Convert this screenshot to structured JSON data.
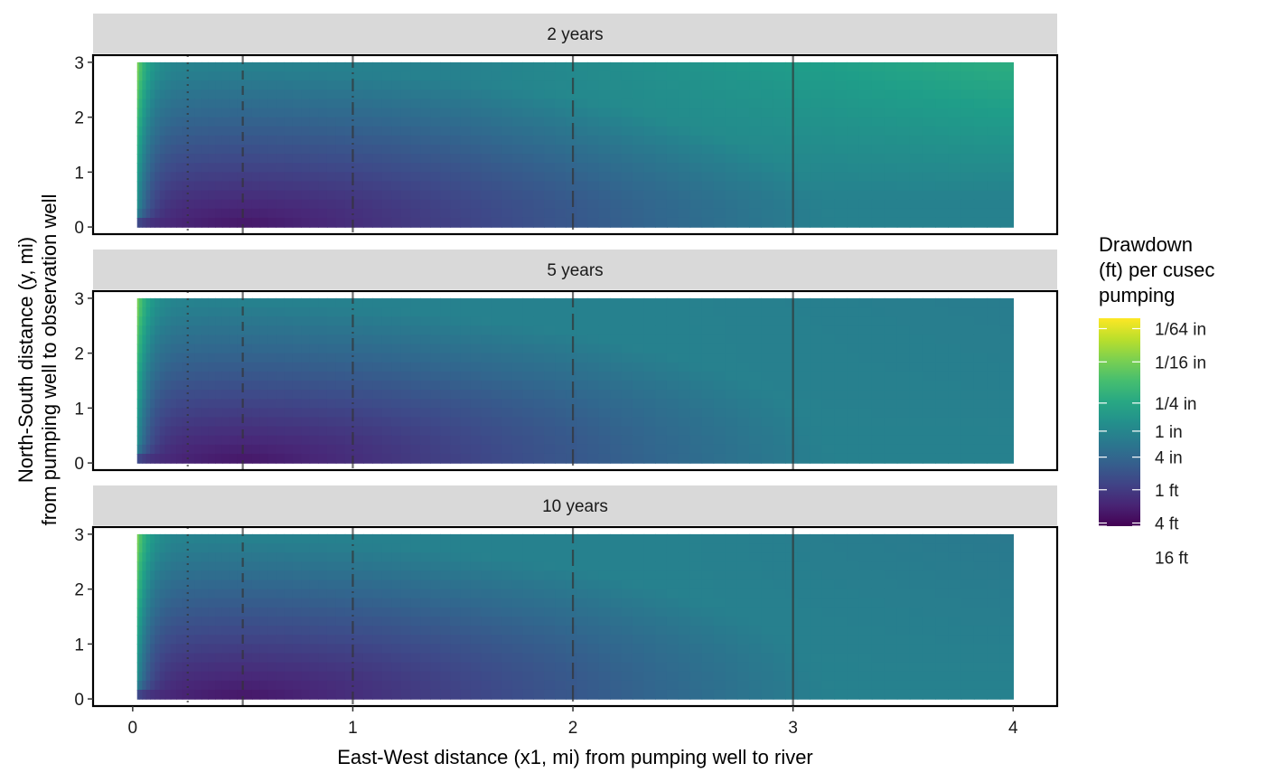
{
  "chart_data": {
    "type": "heatmap",
    "facet_by": "time",
    "panels": [
      {
        "label": "2 years",
        "years": 2
      },
      {
        "label": "5 years",
        "years": 5
      },
      {
        "label": "10 years",
        "years": 10
      }
    ],
    "xlabel": "East-West distance (x1, mi) from pumping well to river",
    "ylabel_lines": [
      "North-South distance (y, mi)",
      "from pumping well to observation well"
    ],
    "x_data_range": [
      0.02,
      4
    ],
    "y_data_range": [
      0,
      3
    ],
    "xlim": [
      -0.18,
      4.2
    ],
    "ylim": [
      -0.13,
      3.13
    ],
    "x_ticks": [
      0,
      1,
      2,
      3,
      4
    ],
    "x_tick_labels": [
      "0",
      "1",
      "2",
      "3",
      "4"
    ],
    "y_ticks": [
      0,
      1,
      2,
      3
    ],
    "y_tick_labels": [
      "0",
      "1",
      "2",
      "3"
    ],
    "reference_lines": [
      {
        "x": 0.25,
        "style": "dotted"
      },
      {
        "x": 0.5,
        "style": "dashed"
      },
      {
        "x": 1,
        "style": "dashdot"
      },
      {
        "x": 2,
        "style": "longdash"
      },
      {
        "x": 3,
        "style": "solid"
      }
    ],
    "colormap": "viridis",
    "colorbar_direction": "high drawdown = dark purple, low drawdown = yellow",
    "legend": {
      "title_lines": [
        "Drawdown",
        "(ft) per cusec",
        "pumping"
      ],
      "placement": "right",
      "entries": [
        {
          "label": "1/64 in",
          "value_ft": 0.0013,
          "t": 0.95
        },
        {
          "label": "1/16 in",
          "value_ft": 0.0052,
          "t": 0.79
        },
        {
          "label": "1/4 in",
          "value_ft": 0.0208,
          "t": 0.592
        },
        {
          "label": "1 in",
          "value_ft": 0.0833,
          "t": 0.457
        },
        {
          "label": "4 in",
          "value_ft": 0.333,
          "t": 0.332
        },
        {
          "label": "1 ft",
          "value_ft": 1,
          "t": 0.175
        },
        {
          "label": "4 ft",
          "value_ft": 4,
          "t": 0.015
        },
        {
          "label": "16 ft",
          "value_ft": 16,
          "t": -0.15
        }
      ]
    },
    "grid": false,
    "colors": {
      "strip_background": "#d9d9d9",
      "panel_border": "#000000",
      "reference_line": "#333333"
    }
  }
}
